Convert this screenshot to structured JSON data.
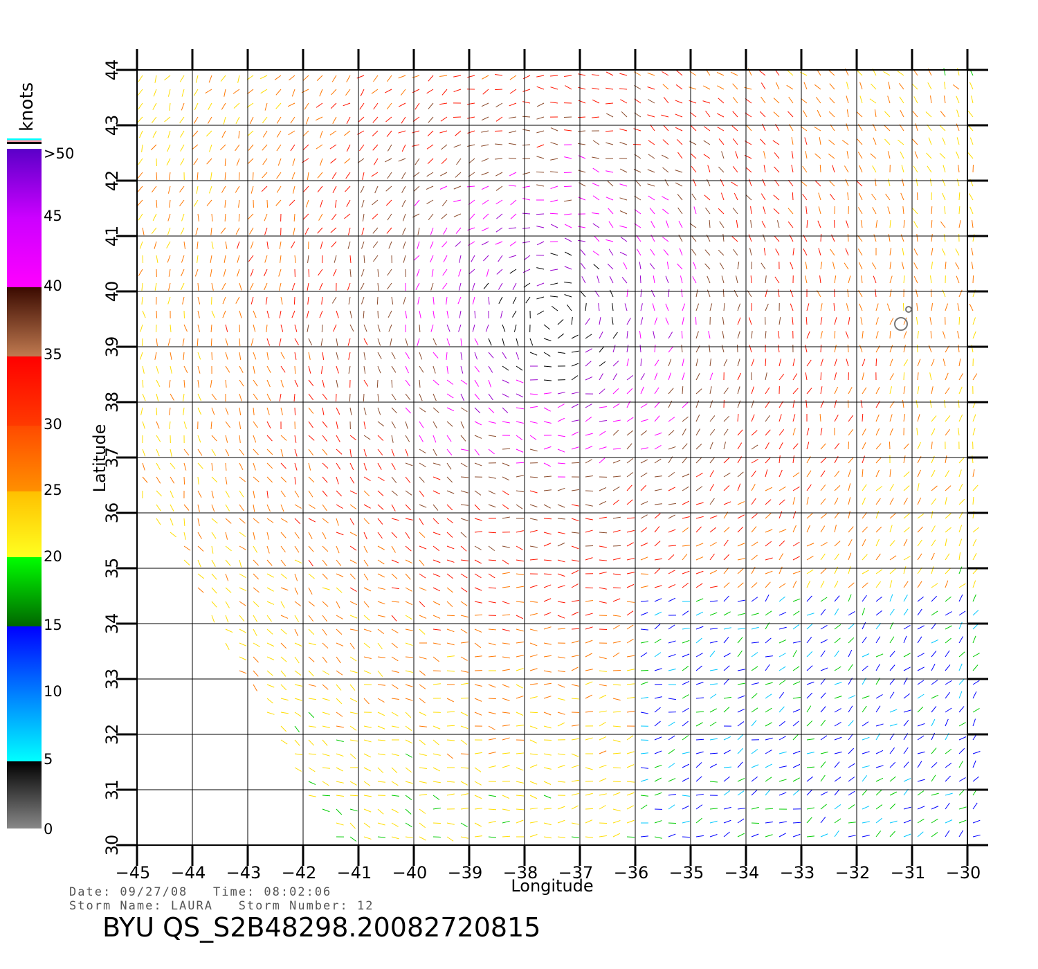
{
  "legend": {
    "units": "knots",
    "labels": [
      ">50",
      "45",
      "40",
      "35",
      "30",
      "25",
      "20",
      "15",
      "10",
      "5",
      "0"
    ]
  },
  "info": {
    "date_line": "Date: 09/27/08   Time: 08:02:06",
    "storm_line": "Storm Name: LAURA   Storm Number: 12",
    "file_id": "BYU QS_S2B48298.20082720815"
  },
  "chart_data": {
    "type": "wind vector plot",
    "xlabel": "Longitude",
    "ylabel": "Latitude",
    "xlim": [
      -45,
      -30
    ],
    "ylim": [
      30,
      44
    ],
    "xticks": [
      -45,
      -44,
      -43,
      -42,
      -41,
      -40,
      -39,
      -38,
      -37,
      -36,
      -35,
      -34,
      -33,
      -32,
      -31,
      -30
    ],
    "yticks": [
      30,
      31,
      32,
      33,
      34,
      35,
      36,
      37,
      38,
      39,
      40,
      41,
      42,
      43,
      44
    ],
    "grid": true,
    "colorscale": [
      {
        "range": [
          0,
          5
        ],
        "color": "#666666"
      },
      {
        "range": [
          5,
          10
        ],
        "color": "#00c8ff"
      },
      {
        "range": [
          10,
          15
        ],
        "color": "#0000ff"
      },
      {
        "range": [
          15,
          20
        ],
        "color": "#00cc00"
      },
      {
        "range": [
          20,
          25
        ],
        "color": "#ffdd00"
      },
      {
        "range": [
          25,
          30
        ],
        "color": "#ff7700"
      },
      {
        "range": [
          30,
          35
        ],
        "color": "#ff1500"
      },
      {
        "range": [
          35,
          40
        ],
        "color": "#8b4a2b"
      },
      {
        "range": [
          40,
          45
        ],
        "color": "#ff00ff"
      },
      {
        "range": [
          45,
          50
        ],
        "color": "#9900cc"
      },
      {
        "range": [
          50,
          99
        ],
        "color": "#000000"
      }
    ],
    "storm_center": {
      "lon": -37.5,
      "lat": 39.5
    }
  }
}
